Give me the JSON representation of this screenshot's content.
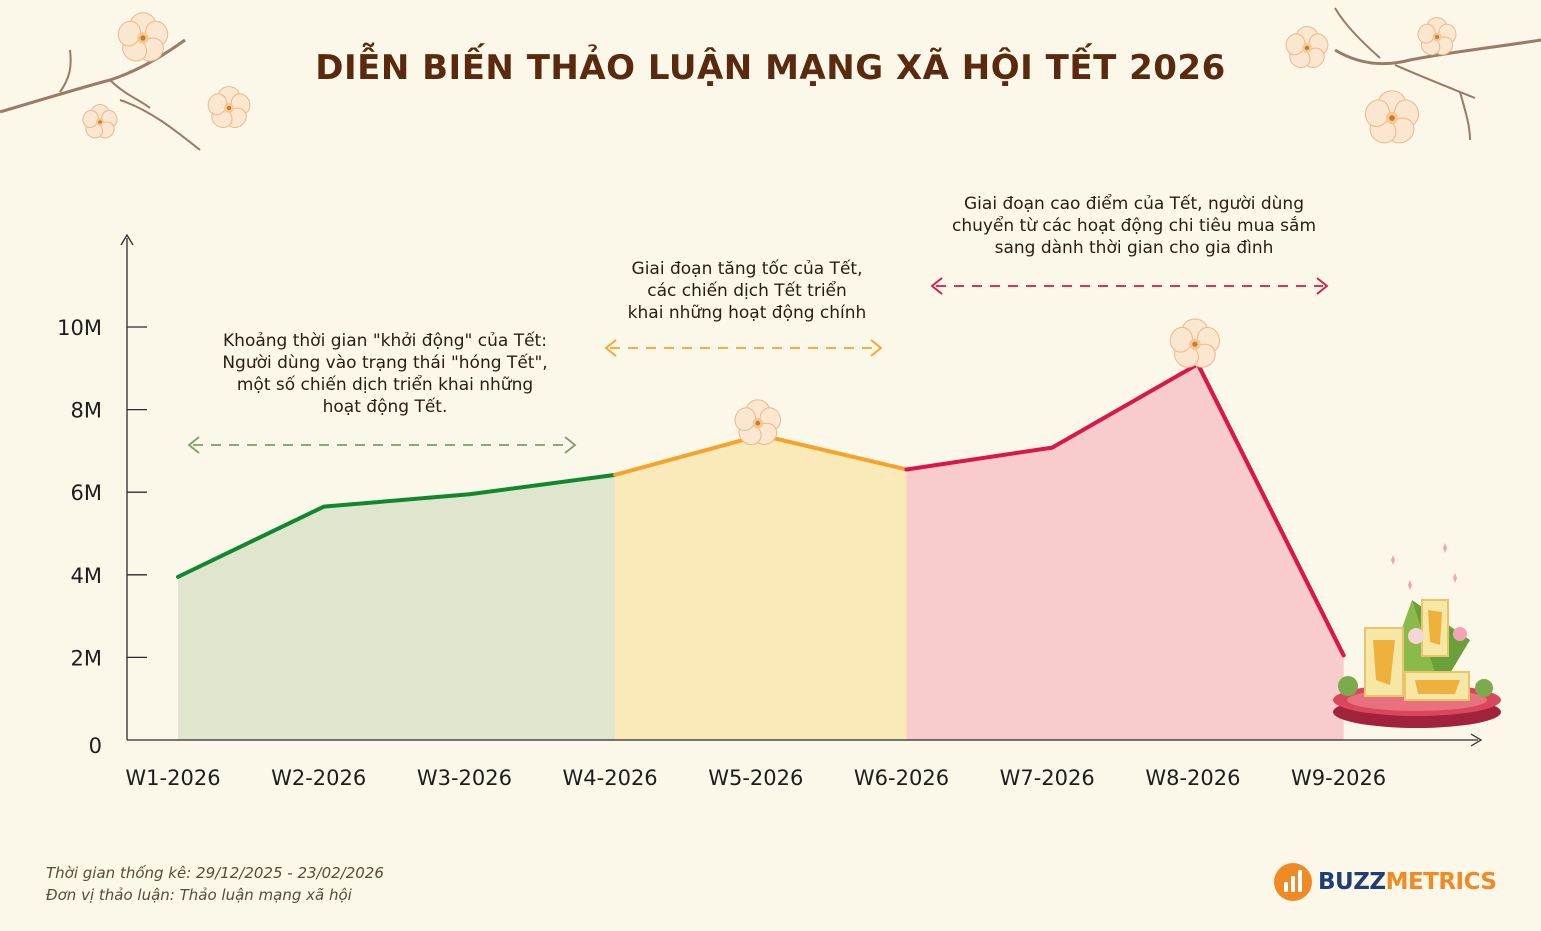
{
  "header": {
    "title": "DIỄN BIẾN THẢO LUẬN MẠNG XÃ HỘI TẾT 2026"
  },
  "annotations": {
    "phase1": [
      "Khoảng thời gian \"khởi động\" của Tết:",
      "Người dùng vào trạng thái \"hóng Tết\",",
      "một số chiến dịch triển khai những",
      "hoạt động Tết."
    ],
    "phase2": [
      "Giai đoạn tăng tốc của Tết,",
      "các chiến dịch Tết triển",
      "khai những hoạt động chính"
    ],
    "phase3": [
      "Giai đoạn cao điểm của Tết, người dùng",
      "chuyển từ các hoạt động chi tiêu mua sắm",
      "sang dành thời gian cho gia đình"
    ]
  },
  "footer": {
    "period": "Thời gian thống kê: 29/12/2025 - 23/02/2026",
    "unit": "Đơn vị thảo luận: Thảo luận mạng xã hội"
  },
  "brand": {
    "part1": "BUZZ",
    "part2": "METRICS",
    "icon": "bar-chart-bubble-icon"
  },
  "colors": {
    "phase1_line": "#11882f",
    "phase1_fill": "#dfe6cd",
    "phase1_arrow": "#7ca06a",
    "phase2_line": "#f5a42a",
    "phase2_fill": "#faeab9",
    "phase2_arrow": "#f5a42a",
    "phase3_line": "#d8174a",
    "phase3_fill": "#f8cccc",
    "phase3_arrow": "#d8174a",
    "title": "#5a2a0e"
  },
  "chart_data": {
    "type": "line",
    "categories": [
      "W1-2026",
      "W2-2026",
      "W3-2026",
      "W4-2026",
      "W5-2026",
      "W6-2026",
      "W7-2026",
      "W8-2026",
      "W9-2026"
    ],
    "values": [
      3950000,
      5650000,
      5950000,
      6420000,
      7380000,
      6550000,
      7080000,
      9100000,
      2050000
    ],
    "ylim": [
      0,
      10000000
    ],
    "yticks": [
      0,
      2000000,
      4000000,
      6000000,
      8000000,
      10000000
    ],
    "ytick_labels": [
      "0",
      "2M",
      "4M",
      "6M",
      "8M",
      "10M"
    ],
    "phases": [
      {
        "start": 0,
        "end": 3
      },
      {
        "start": 3,
        "end": 5
      },
      {
        "start": 5,
        "end": 8
      }
    ],
    "grid": false
  }
}
